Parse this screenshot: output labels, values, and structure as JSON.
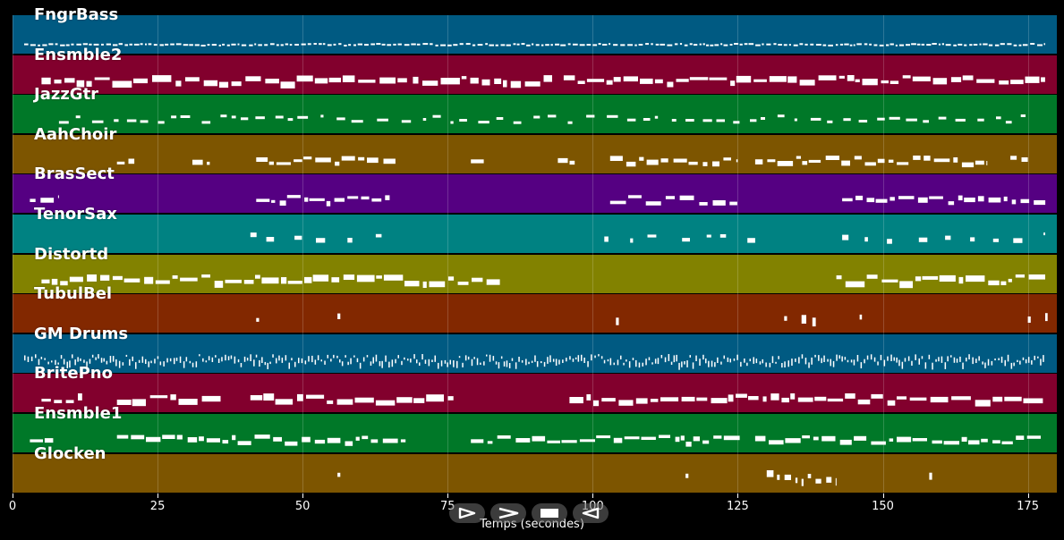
{
  "chart_data": {
    "type": "piano-roll",
    "xlabel": "Temps (secondes)",
    "xlim": [
      0,
      180
    ],
    "xticks": [
      0,
      25,
      50,
      75,
      100,
      125,
      150,
      175
    ],
    "grid": "vertical",
    "tracks": [
      {
        "name": "FngrBass",
        "color": "#005a82",
        "density": "dense",
        "segments": [
          [
            2,
            178
          ]
        ]
      },
      {
        "name": "Ensmble2",
        "color": "#82002d",
        "density": "block",
        "segments": [
          [
            5,
            68
          ],
          [
            69,
            93
          ],
          [
            95,
            178
          ]
        ]
      },
      {
        "name": "JazzGtr",
        "color": "#007828",
        "density": "sparse",
        "segments": [
          [
            8,
            76
          ],
          [
            77,
            175
          ]
        ]
      },
      {
        "name": "AahChoir",
        "color": "#7d5500",
        "density": "phrase",
        "segments": [
          [
            18,
            21
          ],
          [
            31,
            34
          ],
          [
            42,
            66
          ],
          [
            79,
            82
          ],
          [
            94,
            97
          ],
          [
            103,
            125
          ],
          [
            128,
            168
          ],
          [
            172,
            175
          ]
        ]
      },
      {
        "name": "BrasSect",
        "color": "#550082",
        "density": "phrase",
        "segments": [
          [
            3,
            8
          ],
          [
            42,
            65
          ],
          [
            103,
            125
          ],
          [
            143,
            178
          ]
        ]
      },
      {
        "name": "TenorSax",
        "color": "#008282",
        "density": "scatter",
        "segments": [
          [
            41,
            66
          ],
          [
            102,
            128
          ],
          [
            143,
            178
          ]
        ]
      },
      {
        "name": "Distortd",
        "color": "#828200",
        "density": "block",
        "segments": [
          [
            5,
            84
          ],
          [
            142,
            178
          ]
        ]
      },
      {
        "name": "TubulBel",
        "color": "#822800",
        "density": "hits",
        "segments": [
          [
            42,
            42.5
          ],
          [
            56,
            56.5
          ],
          [
            104,
            104.5
          ],
          [
            133,
            133.5
          ],
          [
            136,
            139
          ],
          [
            146,
            146.5
          ],
          [
            175,
            175.5
          ],
          [
            178,
            178.5
          ]
        ]
      },
      {
        "name": "GM Drums",
        "color": "#005a82",
        "density": "drums",
        "segments": [
          [
            2,
            178
          ]
        ]
      },
      {
        "name": "BritePno",
        "color": "#82002d",
        "density": "block",
        "segments": [
          [
            5,
            12
          ],
          [
            18,
            36
          ],
          [
            41,
            76
          ],
          [
            96,
            178
          ]
        ]
      },
      {
        "name": "Ensmble1",
        "color": "#007828",
        "density": "phrase",
        "segments": [
          [
            3,
            7
          ],
          [
            18,
            68
          ],
          [
            79,
            126
          ],
          [
            128,
            178
          ]
        ]
      },
      {
        "name": "Glocken",
        "color": "#7d5500",
        "density": "hits",
        "segments": [
          [
            56,
            56.5
          ],
          [
            116,
            116.5
          ],
          [
            130,
            142
          ],
          [
            158,
            158.5
          ]
        ]
      }
    ]
  },
  "controls": {
    "play_forward": "play-forward",
    "fast_forward": "fast-forward",
    "stop": "stop",
    "rewind": "rewind"
  }
}
